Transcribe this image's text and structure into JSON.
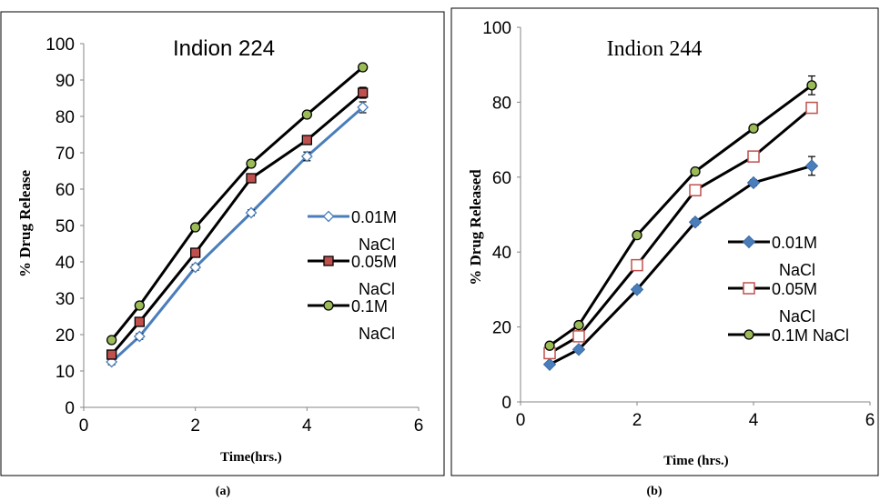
{
  "panels": [
    {
      "caption": "(a)",
      "chart_data": {
        "type": "line",
        "title": "Indion 224",
        "xlabel": "Time(hrs.)",
        "ylabel": "% Drug Release",
        "xlim": [
          0,
          6
        ],
        "ylim": [
          0,
          100
        ],
        "xticks": [
          0,
          2,
          4,
          6
        ],
        "yticks": [
          0,
          10,
          20,
          30,
          40,
          50,
          60,
          70,
          80,
          90,
          100
        ],
        "grid": false,
        "legend_position": "right",
        "x": [
          0.5,
          1,
          2,
          3,
          4,
          5
        ],
        "series": [
          {
            "name": "0.01M NaCl",
            "name_lines": [
              "0.01M",
              "NaCl"
            ],
            "values": [
              12.5,
              19.5,
              38.5,
              53.5,
              69,
              82.5
            ],
            "color": "#4a7ebb",
            "marker": "diamond-open",
            "error": [
              0.8,
              0.8,
              0.8,
              0.8,
              1.2,
              1.5
            ]
          },
          {
            "name": "0.05M NaCl",
            "name_lines": [
              "0.05M",
              "NaCl"
            ],
            "values": [
              14.5,
              23.5,
              42.5,
              63,
              73.5,
              86.5
            ],
            "color": "#000000",
            "marker": "square-red",
            "error": [
              0.6,
              0.6,
              0.6,
              0.8,
              0.8,
              1.5
            ]
          },
          {
            "name": "0.1M NaCl",
            "name_lines": [
              "0.1M",
              "NaCl"
            ],
            "values": [
              18.5,
              28,
              49.5,
              67,
              80.5,
              93.5
            ],
            "color": "#000000",
            "marker": "circle-green",
            "error": [
              0.5,
              0.5,
              0.5,
              0.5,
              0.5,
              0.5
            ]
          }
        ]
      }
    },
    {
      "caption": "(b)",
      "chart_data": {
        "type": "line",
        "title": "Indion 244",
        "xlabel": "Time (hrs.)",
        "ylabel": "% Drug Released",
        "xlim": [
          0,
          6
        ],
        "ylim": [
          0,
          100
        ],
        "xticks": [
          0,
          2,
          4,
          6
        ],
        "yticks": [
          0,
          20,
          40,
          60,
          80,
          100
        ],
        "grid": false,
        "legend_position": "right",
        "x": [
          0.5,
          1,
          2,
          3,
          4,
          5
        ],
        "series": [
          {
            "name": "0.01M NaCl",
            "name_lines": [
              "0.01M",
              "NaCl"
            ],
            "values": [
              10,
              14,
              30,
              48,
              58.5,
              63
            ],
            "color": "#000000",
            "marker": "diamond-blue",
            "error": [
              0.5,
              0.5,
              0.8,
              0.8,
              0.8,
              2.5
            ]
          },
          {
            "name": "0.05M NaCl",
            "name_lines": [
              "0.05M",
              "NaCl"
            ],
            "values": [
              13,
              17.5,
              36.5,
              56.5,
              65.5,
              78.5
            ],
            "color": "#000000",
            "marker": "square-open-red",
            "error": [
              0.5,
              0.5,
              1.2,
              1.2,
              1.2,
              1.2
            ]
          },
          {
            "name": "0.1M NaCl",
            "name_lines": [
              "0.1M NaCl"
            ],
            "values": [
              15,
              20.5,
              44.5,
              61.5,
              73,
              84.5
            ],
            "color": "#000000",
            "marker": "circle-green",
            "error": [
              0.8,
              0.8,
              0.8,
              0.8,
              0.8,
              2.5
            ]
          }
        ]
      }
    }
  ]
}
